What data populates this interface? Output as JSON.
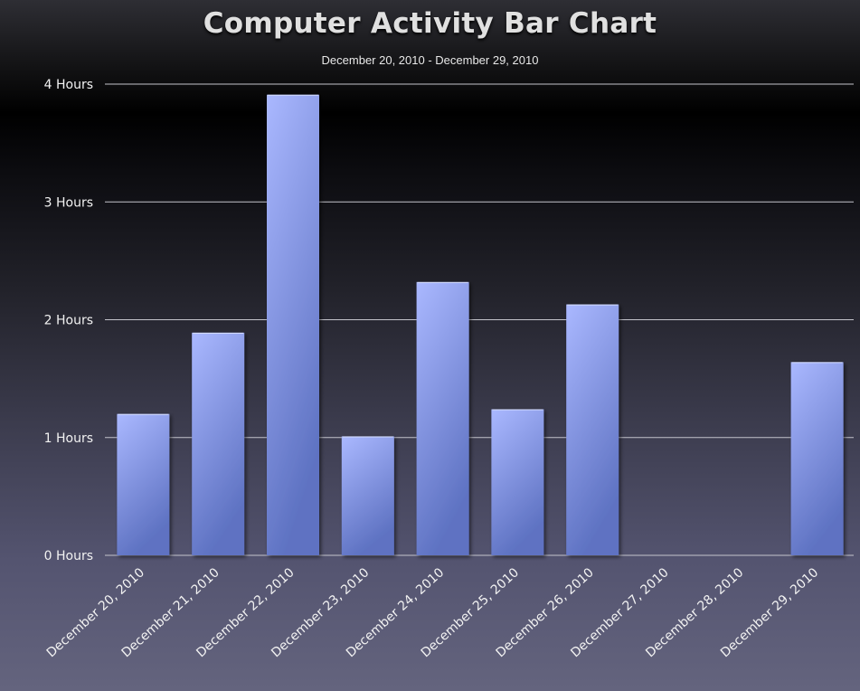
{
  "chart_data": {
    "type": "bar",
    "title": "Computer Activity Bar Chart",
    "subtitle": "December 20, 2010 - December 29, 2010",
    "categories": [
      "December 20, 2010",
      "December 21, 2010",
      "December 22, 2010",
      "December 23, 2010",
      "December 24, 2010",
      "December 25, 2010",
      "December 26, 2010",
      "December 27, 2010",
      "December 28, 2010",
      "December 29, 2010"
    ],
    "values": [
      1.2,
      1.89,
      3.91,
      1.01,
      2.32,
      1.24,
      2.13,
      0,
      0,
      1.64
    ],
    "ylim": [
      0,
      4
    ],
    "yticks": [
      0,
      1,
      2,
      3,
      4
    ],
    "ytick_labels": [
      "0 Hours",
      "1 Hours",
      "2 Hours",
      "3 Hours",
      "4 Hours"
    ],
    "xlabel": "",
    "ylabel": "",
    "grid": true,
    "legend": false,
    "bar_color_light": "#aab8ff",
    "bar_color_dark": "#5e72c2"
  }
}
